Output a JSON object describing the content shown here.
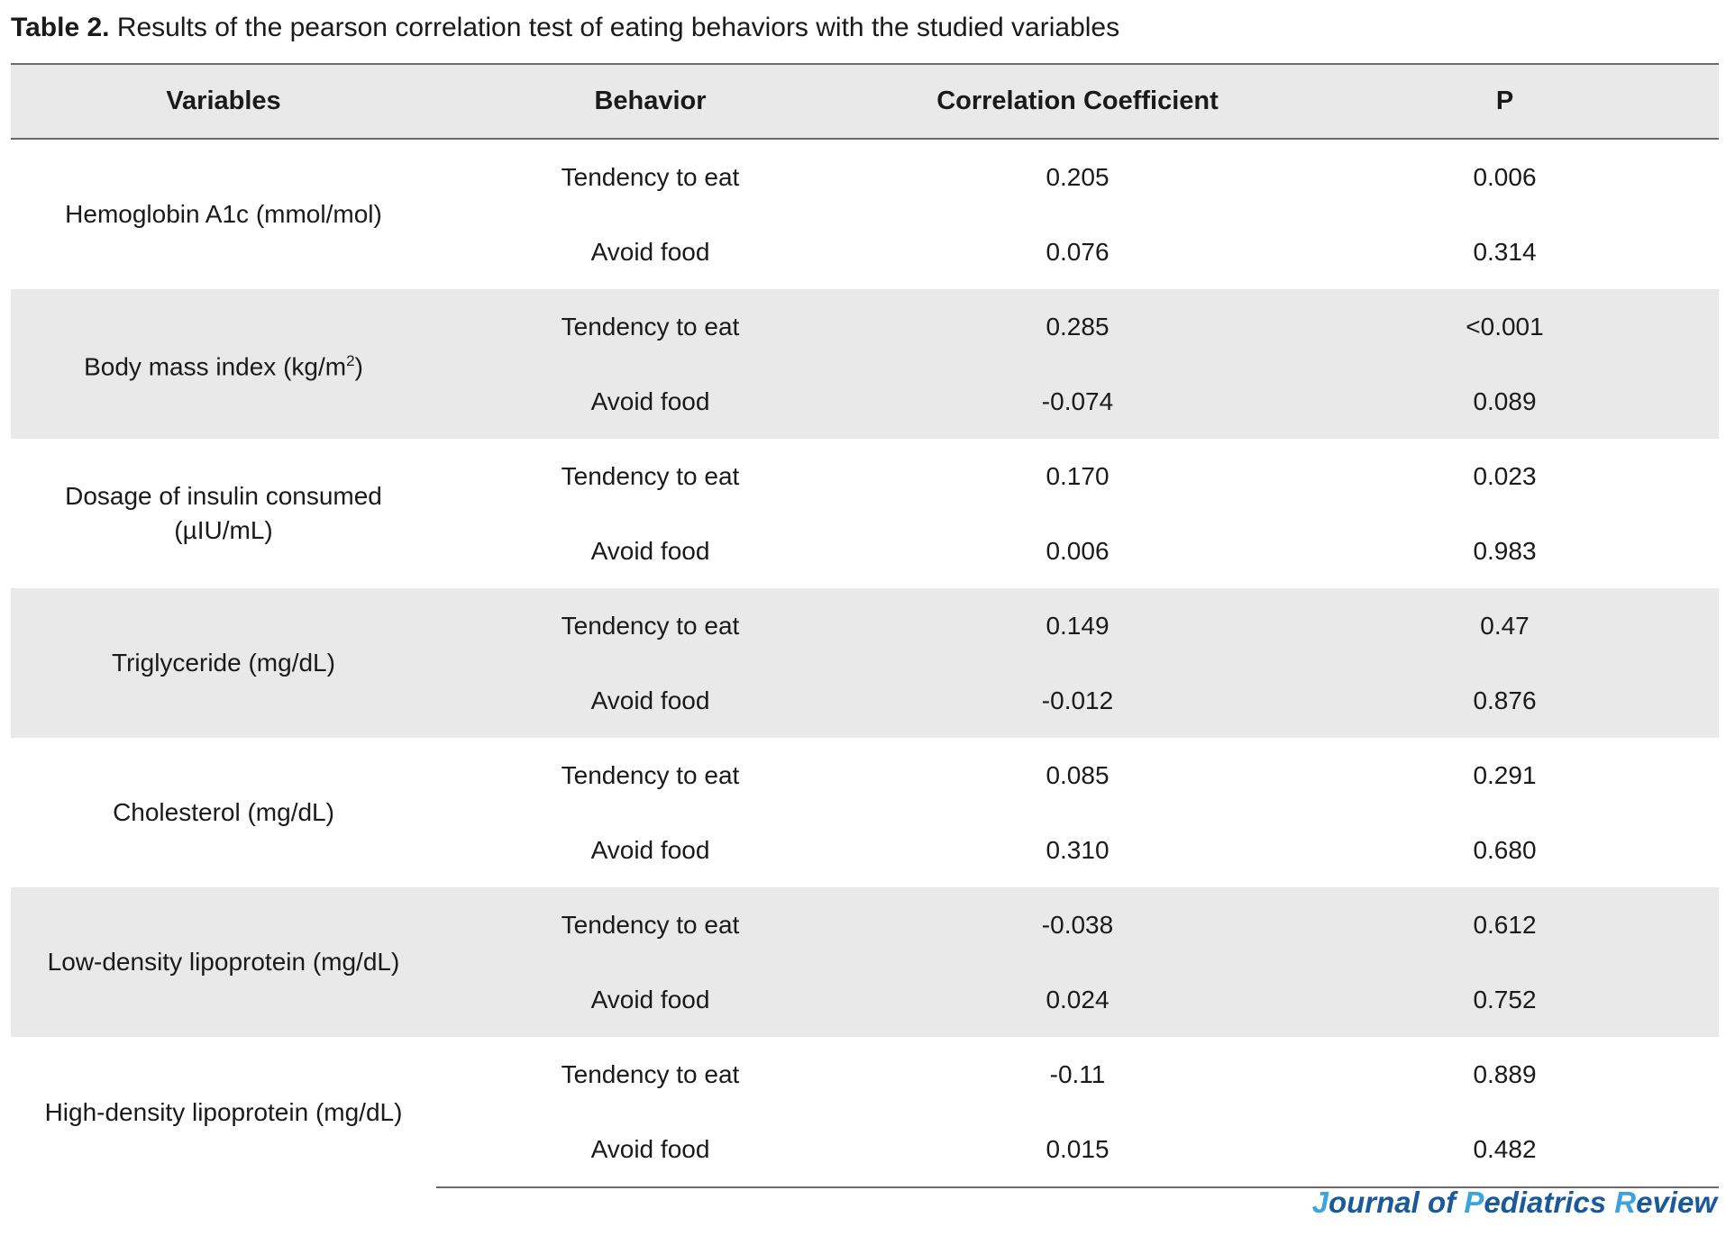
{
  "caption": {
    "label": "Table 2.",
    "text": " Results of the pearson correlation test of eating behaviors with the studied variables"
  },
  "table": {
    "headers": [
      "Variables",
      "Behavior",
      "Correlation Coefficient",
      "P"
    ],
    "groups": [
      {
        "variable": "Hemoglobin A1c (mmol/mol)",
        "rows": [
          {
            "behavior": "Tendency to eat",
            "coef": "0.205",
            "p": "0.006"
          },
          {
            "behavior": "Avoid food",
            "coef": "0.076",
            "p": "0.314"
          }
        ]
      },
      {
        "variable": "Body mass index (kg/m",
        "sup": "2",
        "suffix": ")",
        "rows": [
          {
            "behavior": "Tendency to eat",
            "coef": "0.285",
            "p": "<0.001"
          },
          {
            "behavior": "Avoid food",
            "coef": "-0.074",
            "p": "0.089"
          }
        ]
      },
      {
        "variable": "Dosage of insulin consumed",
        "variable_line2": "(µIU/mL)",
        "rows": [
          {
            "behavior": "Tendency to eat",
            "coef": "0.170",
            "p": "0.023"
          },
          {
            "behavior": "Avoid food",
            "coef": "0.006",
            "p": "0.983"
          }
        ]
      },
      {
        "variable": "Triglyceride (mg/dL)",
        "rows": [
          {
            "behavior": "Tendency to eat",
            "coef": "0.149",
            "p": "0.47"
          },
          {
            "behavior": "Avoid food",
            "coef": "-0.012",
            "p": "0.876"
          }
        ]
      },
      {
        "variable": "Cholesterol (mg/dL)",
        "rows": [
          {
            "behavior": "Tendency to eat",
            "coef": "0.085",
            "p": "0.291"
          },
          {
            "behavior": "Avoid food",
            "coef": "0.310",
            "p": "0.680"
          }
        ]
      },
      {
        "variable": "Low-density lipoprotein (mg/dL)",
        "rows": [
          {
            "behavior": "Tendency to eat",
            "coef": "-0.038",
            "p": "0.612"
          },
          {
            "behavior": "Avoid food",
            "coef": "0.024",
            "p": "0.752"
          }
        ]
      },
      {
        "variable": "High-density lipoprotein (mg/dL)",
        "rows": [
          {
            "behavior": "Tendency to eat",
            "coef": "-0.11",
            "p": "0.889"
          },
          {
            "behavior": "Avoid food",
            "coef": "0.015",
            "p": "0.482"
          }
        ]
      }
    ]
  },
  "journal": {
    "parts": [
      {
        "text": "J",
        "initial": true
      },
      {
        "text": "ournal of ",
        "initial": false
      },
      {
        "text": "P",
        "initial": true
      },
      {
        "text": "ediatrics ",
        "initial": false
      },
      {
        "text": "R",
        "initial": true
      },
      {
        "text": "eview",
        "initial": false
      }
    ]
  },
  "colors": {
    "shade": "#e9e9e9",
    "rule": "#6a6a6a",
    "journal_main": "#1a5a9a",
    "journal_initial": "#3ba3e0"
  }
}
